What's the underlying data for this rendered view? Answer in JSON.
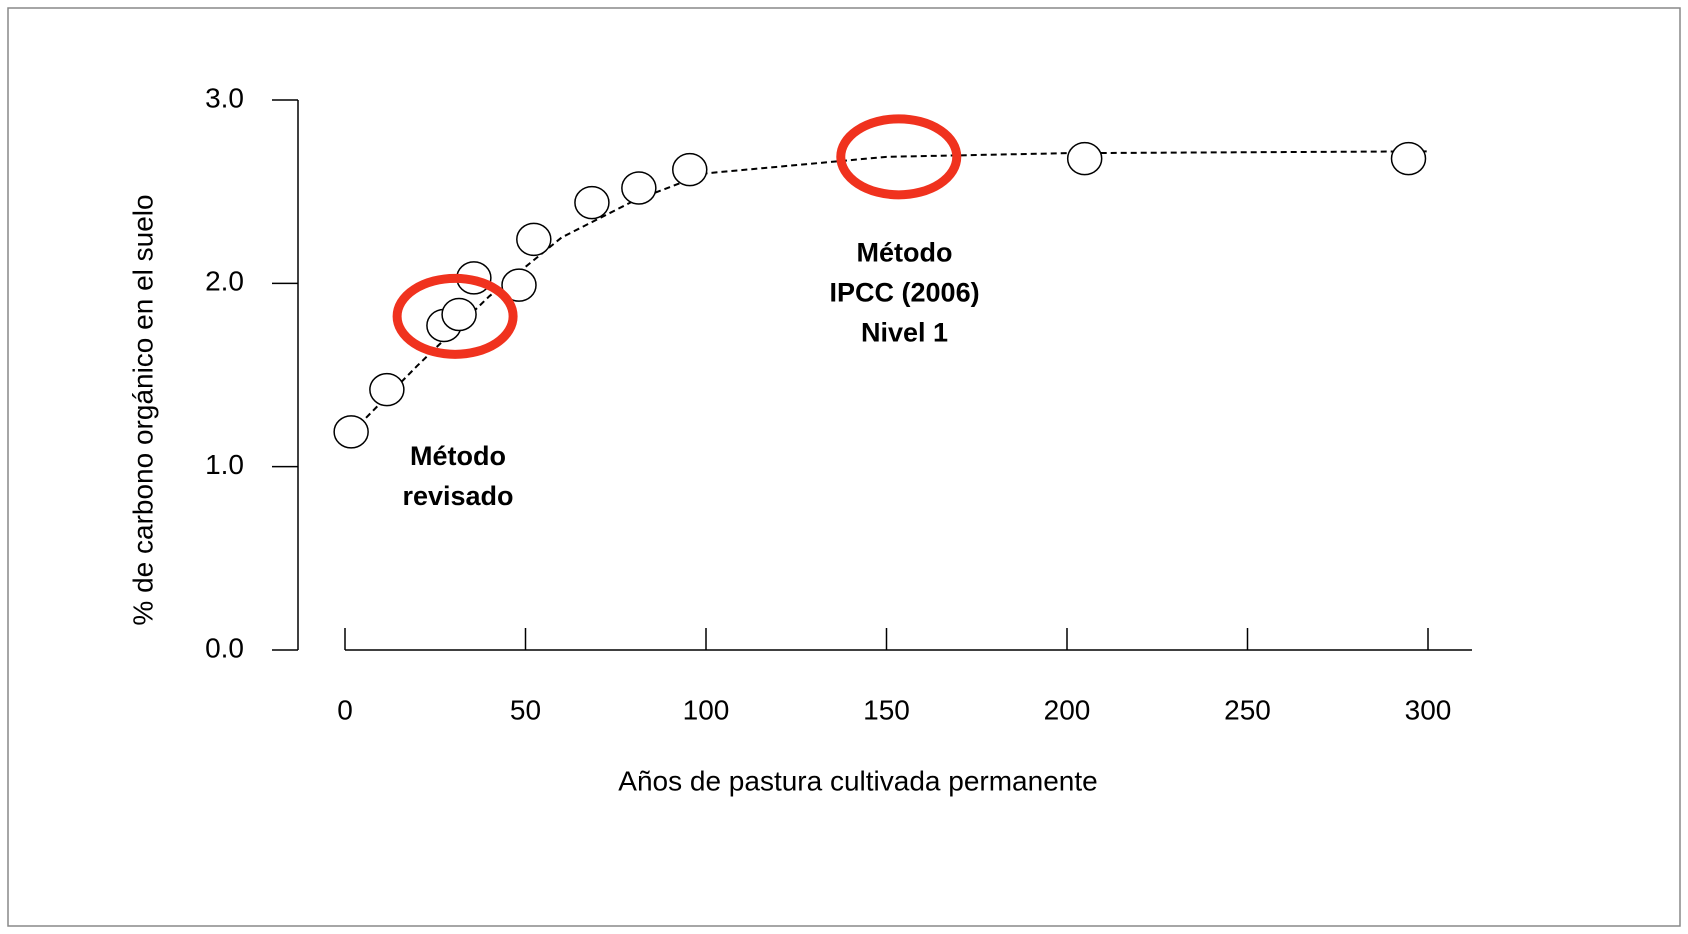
{
  "chart_data": {
    "type": "scatter",
    "x_label": "Años de pastura cultivada permanente",
    "y_label": "% de carbono orgánico en el suelo",
    "xlim": [
      0,
      300
    ],
    "ylim": [
      0,
      3
    ],
    "xticks": [
      0,
      50,
      100,
      150,
      200,
      250,
      300
    ],
    "yticks": [
      {
        "value": 0,
        "label": "0.0"
      },
      {
        "value": 1,
        "label": "1.0"
      },
      {
        "value": 2,
        "label": "2.0"
      },
      {
        "value": 3,
        "label": "3.0"
      }
    ],
    "x": [
      1.7,
      11.6,
      27.4,
      31.6,
      35.7,
      48.2,
      52.3,
      68.4,
      81.4,
      95.5,
      204.9,
      294.6
    ],
    "values": [
      1.19,
      1.42,
      1.77,
      1.83,
      2.03,
      1.99,
      2.24,
      2.44,
      2.52,
      2.62,
      2.68,
      2.68
    ],
    "color": "#ffffff",
    "trend": {
      "x": [
        0,
        20,
        40,
        60,
        80,
        100,
        150,
        200,
        300
      ],
      "values": [
        1.15,
        1.55,
        1.93,
        2.25,
        2.45,
        2.6,
        2.69,
        2.71,
        2.72
      ]
    },
    "highlights": {
      "x": [
        30.5,
        153.4
      ],
      "values": [
        1.82,
        2.69
      ],
      "color": "#f0321e"
    },
    "annotations": [
      {
        "lines": [
          "Método",
          "revisado"
        ],
        "x": 31.3,
        "y": 0.94
      },
      {
        "lines": [
          "Método",
          "IPCC (2006)",
          "Nivel 1"
        ],
        "x": 155,
        "y": 1.94
      }
    ]
  }
}
